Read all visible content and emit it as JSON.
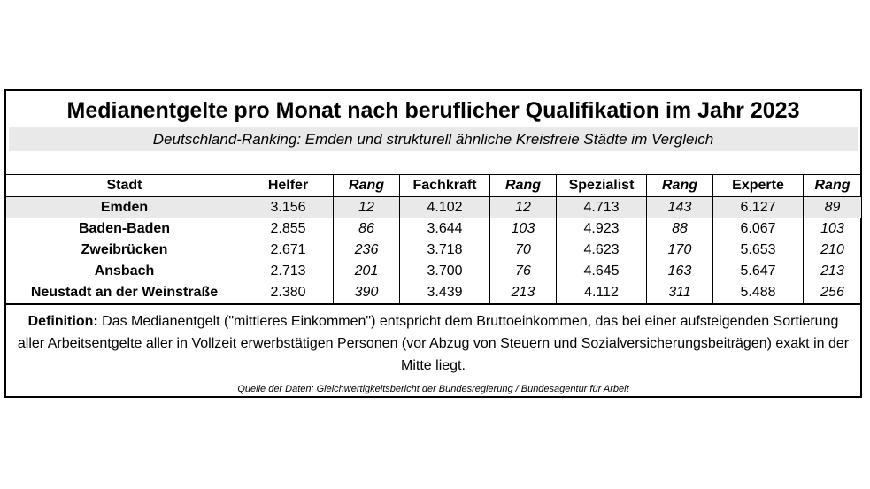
{
  "title": "Medianentgelte pro Monat nach beruflicher Qualifikation im Jahr 2023",
  "subtitle": "Deutschland-Ranking: Emden und strukturell ähnliche Kreisfreie Städte im Vergleich",
  "table": {
    "headers": [
      "Stadt",
      "Helfer",
      "Rang",
      "Fachkraft",
      "Rang",
      "Spezialist",
      "Rang",
      "Experte",
      "Rang"
    ],
    "rows": [
      [
        "Emden",
        "3.156",
        "12",
        "4.102",
        "12",
        "4.713",
        "143",
        "6.127",
        "89"
      ],
      [
        "Baden-Baden",
        "2.855",
        "86",
        "3.644",
        "103",
        "4.923",
        "88",
        "6.067",
        "103"
      ],
      [
        "Zweibrücken",
        "2.671",
        "236",
        "3.718",
        "70",
        "4.623",
        "170",
        "5.653",
        "210"
      ],
      [
        "Ansbach",
        "2.713",
        "201",
        "3.700",
        "76",
        "4.645",
        "163",
        "5.647",
        "213"
      ],
      [
        "Neustadt an der Weinstraße",
        "2.380",
        "390",
        "3.439",
        "213",
        "4.112",
        "311",
        "5.488",
        "256"
      ]
    ]
  },
  "definition": {
    "lead": "Definition:",
    "text": " Das  Medianentgelt (\"mittleres Einkommen\") entspricht dem Bruttoeinkommen, das bei einer aufsteigenden Sortierung aller Arbeitsentgelte aller in Vollzeit erwerbstätigen Personen (vor Abzug von Steuern und Sozialversicherungsbeiträgen) exakt in der Mitte liegt."
  },
  "source": "Quelle der Daten: Gleichwertigkeitsbericht der Bundesregierung / Bundesagentur für Arbeit"
}
